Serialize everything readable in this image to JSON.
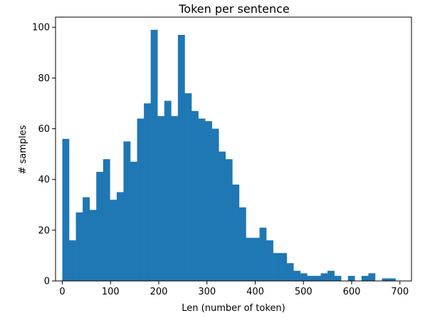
{
  "chart_data": {
    "type": "bar",
    "title": "Token per sentence",
    "xlabel": "Len (number of token)",
    "ylabel": "# samples",
    "xlim": [
      -14,
      724
    ],
    "ylim": [
      0,
      104
    ],
    "xticks": [
      0,
      100,
      200,
      300,
      400,
      500,
      600,
      700
    ],
    "yticks": [
      0,
      20,
      40,
      60,
      80,
      100
    ],
    "grid": false,
    "legend": "none",
    "bar_color": "#1f77b4",
    "bin_start": 0,
    "bin_width": 14.1,
    "values": [
      56,
      16,
      27,
      33,
      28,
      43,
      48,
      32,
      35,
      55,
      47,
      64,
      70,
      99,
      65,
      71,
      65,
      97,
      74,
      67,
      64,
      63,
      60,
      51,
      48,
      38,
      29,
      17,
      17,
      21,
      16,
      11,
      11,
      7,
      4,
      3,
      2,
      2,
      3,
      4,
      2,
      0,
      2,
      0,
      2,
      3,
      0,
      1,
      1,
      0
    ]
  }
}
